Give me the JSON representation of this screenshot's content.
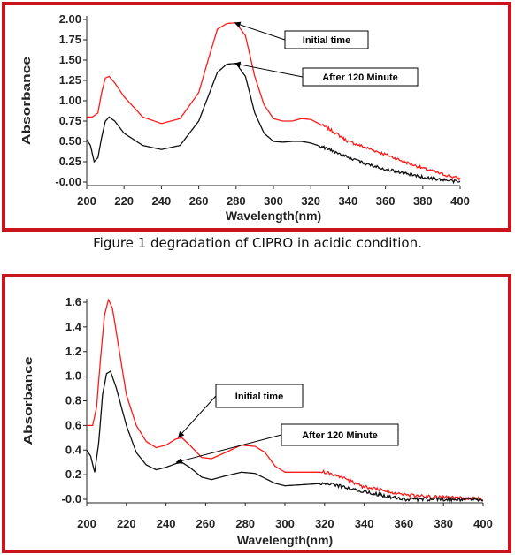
{
  "caption": "Figure 1 degradation of CIPRO in acidic condition.",
  "colors": {
    "frame": "#c8141a",
    "initial_series": "#ff1a1a",
    "after_series": "#111111"
  },
  "chart_data": [
    {
      "type": "line",
      "xlabel": "Wavelength(nm)",
      "ylabel": "Absorbance",
      "xlim": [
        200,
        400
      ],
      "ylim": [
        0.0,
        2.0
      ],
      "x_ticks": [
        200,
        220,
        240,
        260,
        280,
        300,
        320,
        340,
        360,
        380,
        400
      ],
      "y_ticks": [
        "-0.00",
        "0.25",
        "0.50",
        "0.75",
        "1.00",
        "1.25",
        "1.50",
        "1.75",
        "2.00"
      ],
      "series": [
        {
          "name": "Initial time",
          "color": "#ff1a1a",
          "noise_from": 325,
          "x": [
            200,
            203,
            206,
            208,
            210,
            212,
            215,
            220,
            230,
            240,
            250,
            260,
            265,
            270,
            275,
            280,
            285,
            290,
            295,
            300,
            305,
            310,
            315,
            320,
            330,
            340,
            350,
            360,
            370,
            380,
            390,
            400
          ],
          "y": [
            0.8,
            0.8,
            0.85,
            1.1,
            1.28,
            1.3,
            1.22,
            1.05,
            0.8,
            0.72,
            0.78,
            1.1,
            1.5,
            1.88,
            1.95,
            1.96,
            1.8,
            1.3,
            0.95,
            0.78,
            0.75,
            0.75,
            0.78,
            0.77,
            0.65,
            0.5,
            0.42,
            0.34,
            0.25,
            0.17,
            0.1,
            0.04
          ]
        },
        {
          "name": "After 120 Minute",
          "color": "#111111",
          "noise_from": 325,
          "x": [
            200,
            202,
            204,
            206,
            208,
            210,
            212,
            215,
            220,
            230,
            240,
            250,
            260,
            265,
            270,
            275,
            280,
            285,
            290,
            295,
            300,
            305,
            310,
            315,
            320,
            330,
            340,
            350,
            360,
            370,
            380,
            390,
            400
          ],
          "y": [
            0.52,
            0.45,
            0.25,
            0.3,
            0.55,
            0.75,
            0.8,
            0.75,
            0.6,
            0.45,
            0.4,
            0.45,
            0.75,
            1.05,
            1.35,
            1.45,
            1.46,
            1.3,
            0.85,
            0.6,
            0.5,
            0.49,
            0.5,
            0.5,
            0.48,
            0.4,
            0.3,
            0.22,
            0.16,
            0.11,
            0.06,
            0.03,
            0.0
          ]
        }
      ],
      "annotations": [
        {
          "text": "Initial time",
          "target_series": 0,
          "x": 279,
          "y": 1.96
        },
        {
          "text": "After 120 Minute",
          "target_series": 1,
          "x": 279,
          "y": 1.46
        }
      ]
    },
    {
      "type": "line",
      "xlabel": "Wavelength(nm)",
      "ylabel": "Absorbance",
      "xlim": [
        200,
        400
      ],
      "ylim": [
        0.0,
        1.6
      ],
      "x_ticks": [
        200,
        220,
        240,
        260,
        280,
        300,
        320,
        340,
        360,
        380,
        400
      ],
      "y_ticks": [
        "-0.0",
        "0.2",
        "0.4",
        "0.6",
        "0.8",
        "1.0",
        "1.2",
        "1.4",
        "1.6"
      ],
      "series": [
        {
          "name": "Initial time",
          "color": "#ff1a1a",
          "noise_from": 318,
          "x": [
            200,
            203,
            205,
            207,
            209,
            211,
            213,
            216,
            220,
            225,
            230,
            235,
            240,
            245,
            248,
            252,
            258,
            263,
            270,
            278,
            285,
            290,
            295,
            300,
            310,
            320,
            330,
            340,
            350,
            360,
            370,
            380,
            390,
            400
          ],
          "y": [
            0.6,
            0.6,
            0.75,
            1.15,
            1.5,
            1.62,
            1.55,
            1.25,
            0.85,
            0.6,
            0.47,
            0.42,
            0.44,
            0.49,
            0.5,
            0.44,
            0.34,
            0.33,
            0.38,
            0.44,
            0.43,
            0.38,
            0.27,
            0.22,
            0.22,
            0.22,
            0.17,
            0.1,
            0.07,
            0.04,
            0.025,
            0.015,
            0.01,
            0.0
          ]
        },
        {
          "name": "After 120 Minute",
          "color": "#111111",
          "noise_from": 318,
          "x": [
            200,
            202,
            204,
            206,
            208,
            210,
            212,
            215,
            220,
            225,
            230,
            235,
            240,
            245,
            248,
            252,
            258,
            263,
            270,
            278,
            285,
            290,
            295,
            300,
            310,
            320,
            330,
            340,
            350,
            360,
            370,
            380,
            390,
            400
          ],
          "y": [
            0.4,
            0.35,
            0.22,
            0.45,
            0.85,
            1.02,
            1.04,
            0.9,
            0.6,
            0.38,
            0.28,
            0.24,
            0.26,
            0.29,
            0.3,
            0.26,
            0.18,
            0.16,
            0.19,
            0.22,
            0.21,
            0.17,
            0.13,
            0.11,
            0.12,
            0.13,
            0.1,
            0.06,
            0.03,
            0.0,
            0.0,
            0.0,
            0.0,
            0.0
          ]
        }
      ],
      "annotations": [
        {
          "text": "Initial time",
          "target_series": 0,
          "x": 246,
          "y": 0.5
        },
        {
          "text": "After 120 Minute",
          "target_series": 1,
          "x": 245,
          "y": 0.3
        }
      ]
    }
  ]
}
